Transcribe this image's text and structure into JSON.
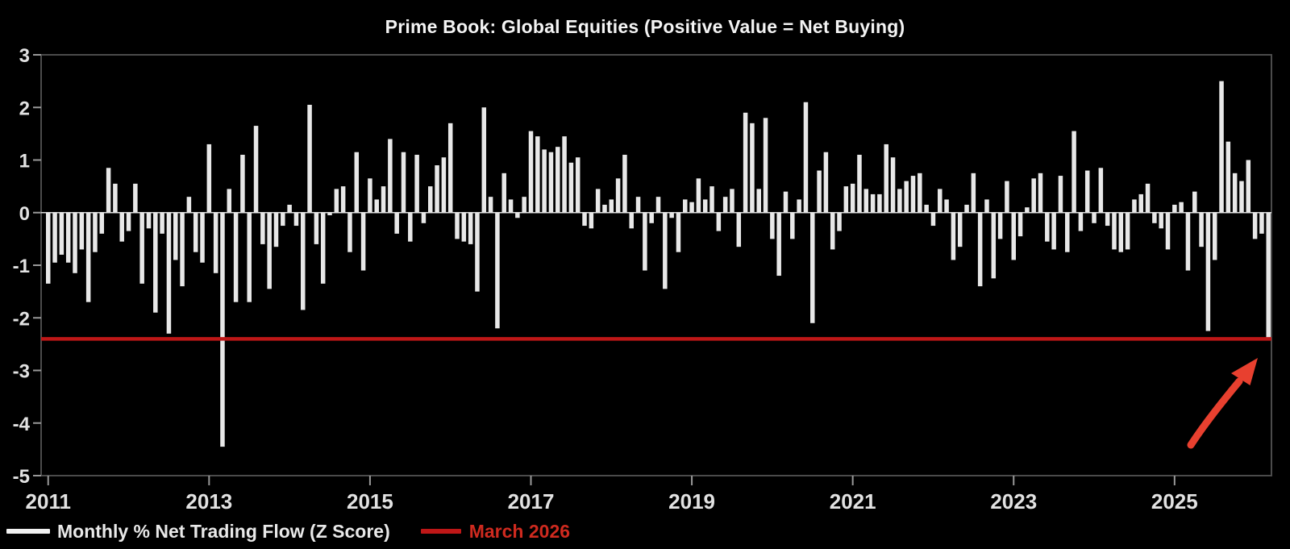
{
  "title": "Prime Book: Global Equities (Positive Value = Net Buying)",
  "legend": {
    "series_label": "Monthly % Net Trading Flow (Z Score)",
    "reference_label": "March 2026"
  },
  "colors": {
    "background": "#000000",
    "bar": "#e8e8e8",
    "zero_line": "#d8d8d8",
    "reference_line": "#bf1717",
    "arrow": "#e8402f",
    "axis_border": "#4b4b4b",
    "tick": "#999999",
    "tick_label": "#e2e2e2"
  },
  "chart_data": {
    "type": "bar",
    "title": "Prime Book: Global Equities (Positive Value = Net Buying)",
    "xlabel": "",
    "ylabel": "",
    "ylim": [
      -5,
      3
    ],
    "y_ticks": [
      3,
      2,
      1,
      0,
      -1,
      -2,
      -3,
      -4,
      -5
    ],
    "x_tick_years": [
      2011,
      2013,
      2015,
      2017,
      2019,
      2021,
      2023,
      2025
    ],
    "grid": false,
    "legend_position": "bottom-left",
    "frequency": "monthly",
    "start_month": "2011-01",
    "end_month": "2026-03",
    "reference_line": {
      "label": "March 2026",
      "value": -2.4
    },
    "annotation": {
      "type": "arrow",
      "meaning": "points to final bar touching the March 2026 reference line"
    },
    "series": [
      {
        "name": "Monthly % Net Trading Flow (Z Score)",
        "values": [
          -1.35,
          -0.95,
          -0.8,
          -0.95,
          -1.15,
          -0.7,
          -1.7,
          -0.75,
          -0.4,
          0.85,
          0.55,
          -0.55,
          -0.35,
          0.55,
          -1.35,
          -0.3,
          -1.9,
          -0.4,
          -2.3,
          -0.9,
          -1.4,
          0.3,
          -0.75,
          -0.95,
          1.3,
          -1.15,
          -4.45,
          0.45,
          -1.7,
          1.1,
          -1.7,
          1.65,
          -0.6,
          -1.45,
          -0.65,
          -0.25,
          0.15,
          -0.25,
          -1.85,
          2.05,
          -0.6,
          -1.35,
          -0.05,
          0.45,
          0.5,
          -0.75,
          1.15,
          -1.1,
          0.65,
          0.25,
          0.5,
          1.4,
          -0.4,
          1.15,
          -0.55,
          1.1,
          -0.2,
          0.5,
          0.9,
          1.05,
          1.7,
          -0.5,
          -0.55,
          -0.6,
          -1.5,
          2.0,
          0.3,
          -2.2,
          0.75,
          0.25,
          -0.1,
          0.3,
          1.55,
          1.45,
          1.2,
          1.15,
          1.25,
          1.45,
          0.95,
          1.05,
          -0.25,
          -0.3,
          0.45,
          0.15,
          0.25,
          0.65,
          1.1,
          -0.3,
          0.3,
          -1.1,
          -0.2,
          0.3,
          -1.45,
          -0.1,
          -0.75,
          0.25,
          0.2,
          0.65,
          0.25,
          0.5,
          -0.35,
          0.3,
          0.45,
          -0.65,
          1.9,
          1.7,
          0.45,
          1.8,
          -0.5,
          -1.2,
          0.4,
          -0.5,
          0.25,
          2.1,
          -2.1,
          0.8,
          1.15,
          -0.7,
          -0.35,
          0.5,
          0.55,
          1.1,
          0.45,
          0.35,
          0.35,
          1.3,
          1.05,
          0.45,
          0.6,
          0.7,
          0.75,
          0.15,
          -0.25,
          0.45,
          0.25,
          -0.9,
          -0.65,
          0.15,
          0.75,
          -1.4,
          0.25,
          -1.25,
          -0.5,
          0.6,
          -0.9,
          -0.45,
          0.1,
          0.65,
          0.75,
          -0.55,
          -0.7,
          0.7,
          -0.75,
          1.55,
          -0.35,
          0.8,
          -0.2,
          0.85,
          -0.25,
          -0.7,
          -0.75,
          -0.7,
          0.25,
          0.35,
          0.55,
          -0.2,
          -0.3,
          -0.7,
          0.15,
          0.2,
          -1.1,
          0.4,
          -0.65,
          -2.25,
          -0.9,
          2.5,
          1.35,
          0.75,
          0.6,
          1.0,
          -0.5,
          -0.4,
          -2.4
        ]
      }
    ]
  }
}
